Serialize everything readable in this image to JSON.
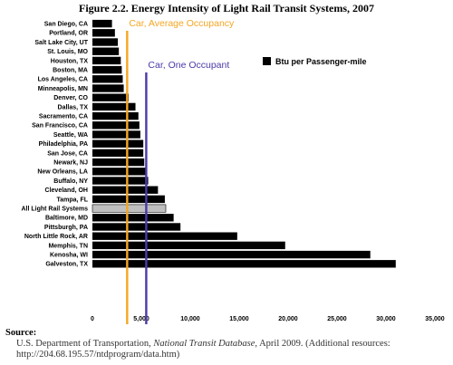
{
  "title": "Figure 2.2. Energy Intensity of Light Rail Transit Systems, 2007",
  "source": {
    "heading": "Source:",
    "prefix": "U.S. Department of Transportation, ",
    "publication": "National Transit Database",
    "suffix": ", April 2009.  (Additional resources:",
    "url": "http://204.68.195.57/ntdprogram/data.htm)"
  },
  "chart_data": {
    "type": "bar",
    "orientation": "horizontal",
    "title": "Figure 2.2. Energy Intensity of Light Rail Transit Systems, 2007",
    "xlim": [
      0,
      35000
    ],
    "xticks": [
      "0",
      "5,000",
      "10,000",
      "15,000",
      "20,000",
      "25,000",
      "30,000",
      "35,000"
    ],
    "legend": {
      "label": "Btu per Passenger-mile",
      "placement": "top-right"
    },
    "series": [
      {
        "name": "Btu per Passenger-mile",
        "color": "#000000",
        "highlight_color": "#bfbfbf",
        "highlight_category": "All Light Rail Systems",
        "categories": [
          "San Diego, CA",
          "Portland, OR",
          "Salt Lake City, UT",
          "St. Louis, MO",
          "Houston, TX",
          "Boston, MA",
          "Los Angeles, CA",
          "Minneapolis, MN",
          "Denver, CO",
          "Dallas, TX",
          "Sacramento, CA",
          "San Francisco, CA",
          "Seattle, WA",
          "Philadelphia, PA",
          "San Jose, CA",
          "Newark, NJ",
          "New Orleans, LA",
          "Buffalo, NY",
          "Cleveland, OH",
          "Tampa, FL",
          "All Light Rail Systems",
          "Baltimore, MD",
          "Pittsburgh, PA",
          "North Little Rock, AR",
          "Memphis, TN",
          "Kenosha, WI",
          "Galveston, TX"
        ],
        "values": [
          2000,
          2300,
          2600,
          2700,
          2900,
          3000,
          3100,
          3200,
          3700,
          4400,
          4700,
          4800,
          4900,
          5200,
          5200,
          5300,
          5500,
          5700,
          6700,
          7400,
          7500,
          8300,
          9000,
          14800,
          19700,
          28400,
          31000
        ]
      }
    ],
    "reference_lines": [
      {
        "label": "Car, Average Occupancy",
        "value": 3550,
        "color": "#f5a623"
      },
      {
        "label": "Car, One Occupant",
        "value": 5500,
        "color": "#4a3aa8"
      }
    ],
    "grid": false
  }
}
